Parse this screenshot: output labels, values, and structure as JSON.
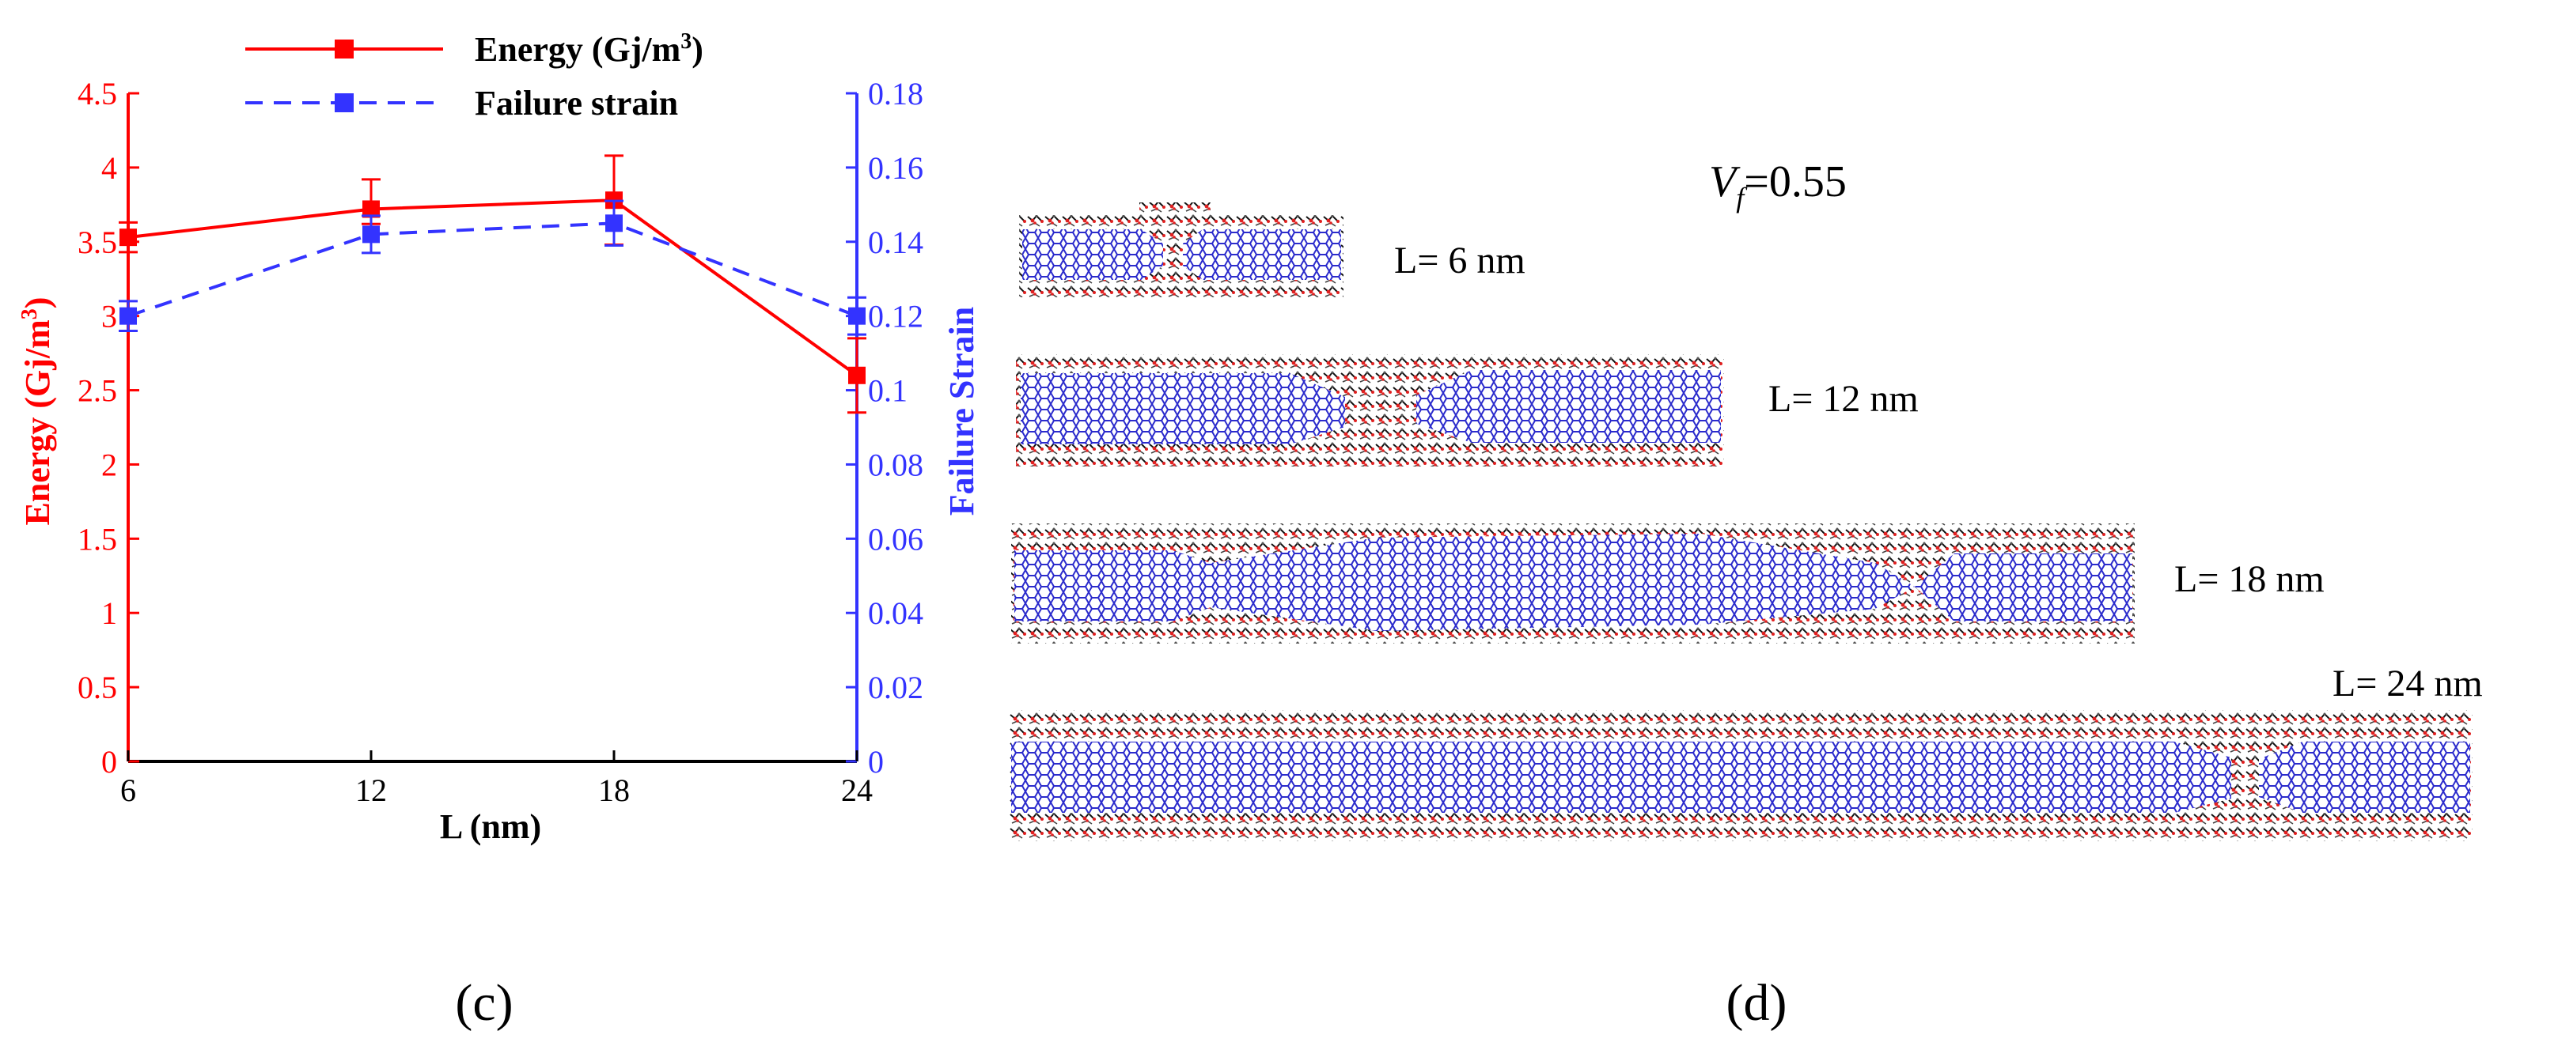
{
  "panel_c": {
    "label": "(c)",
    "legend": {
      "energy": "Energy (Gj/m",
      "energy_sup": "3",
      "energy_close": ")",
      "strain": "Failure strain"
    },
    "y_left_title": "Energy (Gj/m",
    "y_left_sup": "3",
    "y_left_close": ")",
    "y_right_title": "Failure Strain",
    "x_title": "L (nm)"
  },
  "panel_d": {
    "label": "(d)",
    "vf_symbol": "V",
    "vf_sub": "f",
    "vf_value": "=0.55",
    "lengths": [
      "L= 6 nm",
      "L= 12 nm",
      "L= 18 nm",
      "L= 24 nm"
    ]
  },
  "colors": {
    "energy": "#ff0000",
    "strain": "#3333ff",
    "axis": "#000000",
    "cnt": "#2b2bcc"
  },
  "chart_data": {
    "type": "line",
    "x": [
      6,
      12,
      18,
      24
    ],
    "x_ticks": [
      "6",
      "12",
      "18",
      "24"
    ],
    "xlim": [
      6,
      24
    ],
    "xlabel": "L (nm)",
    "y_left": {
      "label": "Energy (Gj/m3)",
      "ylim": [
        0,
        4.5
      ],
      "ticks": [
        "0",
        "0.5",
        "1",
        "1.5",
        "2",
        "2.5",
        "3",
        "3.5",
        "4",
        "4.5"
      ],
      "tick_values": [
        0,
        0.5,
        1,
        1.5,
        2,
        2.5,
        3,
        3.5,
        4,
        4.5
      ]
    },
    "y_right": {
      "label": "Failure Strain",
      "ylim": [
        0,
        0.18
      ],
      "ticks": [
        "0",
        "0.02",
        "0.04",
        "0.06",
        "0.08",
        "0.1",
        "0.12",
        "0.14",
        "0.16",
        "0.18"
      ],
      "tick_values": [
        0,
        0.02,
        0.04,
        0.06,
        0.08,
        0.1,
        0.12,
        0.14,
        0.16,
        0.18
      ]
    },
    "legend_position": "top",
    "series": [
      {
        "name": "Energy (Gj/m3)",
        "axis": "left",
        "style": "solid",
        "marker": "square",
        "values": [
          3.53,
          3.72,
          3.78,
          2.6
        ],
        "err_low": [
          0.1,
          0.1,
          0.3,
          0.25
        ],
        "err_high": [
          0.1,
          0.2,
          0.3,
          0.25
        ]
      },
      {
        "name": "Failure strain",
        "axis": "right",
        "style": "dashed",
        "marker": "square",
        "values": [
          0.12,
          0.142,
          0.145,
          0.12
        ],
        "err_low": [
          0.004,
          0.005,
          0.006,
          0.005
        ],
        "err_high": [
          0.004,
          0.005,
          0.006,
          0.005
        ]
      }
    ]
  }
}
